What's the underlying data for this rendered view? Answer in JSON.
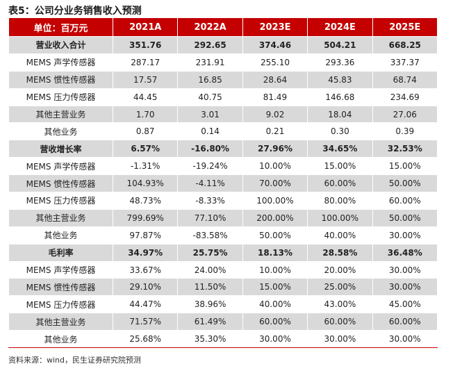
{
  "title": "表5：公司分业务销售收入预测",
  "header": [
    "单位：百万元",
    "2021A",
    "2022A",
    "2023E",
    "2024E",
    "2025E"
  ],
  "rows": [
    {
      "label": "营业收入合计",
      "values": [
        "351.76",
        "292.65",
        "374.46",
        "504.21",
        "668.25"
      ],
      "bold": true
    },
    {
      "label": "MEMS 声学传感器",
      "values": [
        "287.17",
        "231.91",
        "255.10",
        "293.36",
        "337.37"
      ],
      "bold": false
    },
    {
      "label": "MEMS 惯性传感器",
      "values": [
        "17.57",
        "16.85",
        "28.64",
        "45.83",
        "68.74"
      ],
      "bold": false
    },
    {
      "label": "MEMS 压力传感器",
      "values": [
        "44.45",
        "40.75",
        "81.49",
        "146.68",
        "234.69"
      ],
      "bold": false
    },
    {
      "label": "其他主营业务",
      "values": [
        "1.70",
        "3.01",
        "9.02",
        "18.04",
        "27.06"
      ],
      "bold": false
    },
    {
      "label": "其他业务",
      "values": [
        "0.87",
        "0.14",
        "0.21",
        "0.30",
        "0.39"
      ],
      "bold": false
    },
    {
      "label": "营收增长率",
      "values": [
        "6.57%",
        "-16.80%",
        "27.96%",
        "34.65%",
        "32.53%"
      ],
      "bold": true
    },
    {
      "label": "MEMS 声学传感器",
      "values": [
        "-1.31%",
        "-19.24%",
        "10.00%",
        "15.00%",
        "15.00%"
      ],
      "bold": false
    },
    {
      "label": "MEMS 惯性传感器",
      "values": [
        "104.93%",
        "-4.11%",
        "70.00%",
        "60.00%",
        "50.00%"
      ],
      "bold": false
    },
    {
      "label": "MEMS 压力传感器",
      "values": [
        "48.73%",
        "-8.33%",
        "100.00%",
        "80.00%",
        "60.00%"
      ],
      "bold": false
    },
    {
      "label": "其他主营业务",
      "values": [
        "799.69%",
        "77.10%",
        "200.00%",
        "100.00%",
        "50.00%"
      ],
      "bold": false
    },
    {
      "label": "其他业务",
      "values": [
        "97.87%",
        "-83.58%",
        "50.00%",
        "40.00%",
        "30.00%"
      ],
      "bold": false
    },
    {
      "label": "毛利率",
      "values": [
        "34.97%",
        "25.75%",
        "18.13%",
        "28.58%",
        "36.48%"
      ],
      "bold": true
    },
    {
      "label": "MEMS 声学传感器",
      "values": [
        "33.67%",
        "24.00%",
        "10.00%",
        "20.00%",
        "30.00%"
      ],
      "bold": false
    },
    {
      "label": "MEMS 惯性传感器",
      "values": [
        "29.10%",
        "11.50%",
        "15.00%",
        "25.00%",
        "30.00%"
      ],
      "bold": false
    },
    {
      "label": "MEMS 压力传感器",
      "values": [
        "44.47%",
        "38.96%",
        "40.00%",
        "43.00%",
        "45.00%"
      ],
      "bold": false
    },
    {
      "label": "其他主营业务",
      "values": [
        "71.57%",
        "61.49%",
        "60.00%",
        "60.00%",
        "60.00%"
      ],
      "bold": false
    },
    {
      "label": "其他业务",
      "values": [
        "25.68%",
        "35.30%",
        "30.00%",
        "30.00%",
        "30.00%"
      ],
      "bold": false
    }
  ],
  "source": "资料来源：wind，民生证券研究院预测",
  "colors": {
    "header_bg": "#c40000",
    "shade_row": "#d9d9d9",
    "header_text": "#ffffff"
  }
}
